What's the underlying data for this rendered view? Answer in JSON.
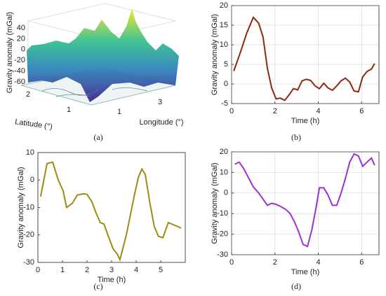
{
  "chart_data": [
    {
      "type": "surface",
      "label": "(a)",
      "zlabel": "Gravity anomaly (mGal)",
      "xlabel": "Latitude (°)",
      "ylabel": "Longitude (°)",
      "zlim": [
        -60,
        40
      ],
      "zticks": [
        40,
        20,
        0,
        -20,
        -40,
        -60
      ],
      "xticks": [
        2,
        1
      ],
      "yticks": [
        1,
        3
      ]
    },
    {
      "type": "line",
      "label": "(b)",
      "ylabel": "Gravity anomaly (mGal)",
      "xlabel": "Time (h)",
      "grid": true,
      "xlim": [
        0,
        6.8
      ],
      "xticks": [
        0,
        2,
        4,
        6
      ],
      "ylim": [
        -5,
        20
      ],
      "yticks": [
        -5,
        0,
        5,
        10,
        15,
        20
      ],
      "series": [
        {
          "color": "#8b2a10",
          "x": [
            0.1,
            0.4,
            0.7,
            1.0,
            1.25,
            1.45,
            1.65,
            1.85,
            2.05,
            2.25,
            2.45,
            2.65,
            2.85,
            3.05,
            3.25,
            3.45,
            3.65,
            3.85,
            4.05,
            4.25,
            4.45,
            4.65,
            4.85,
            5.05,
            5.25,
            5.45,
            5.65,
            5.85,
            6.05,
            6.25,
            6.45,
            6.6
          ],
          "values": [
            3.3,
            8,
            13,
            17,
            15.5,
            12,
            4,
            -1,
            -3.8,
            -3.6,
            -4.2,
            -2.8,
            -1.2,
            -1.5,
            0.8,
            1.2,
            0.9,
            -0.5,
            -1.2,
            0.2,
            -1,
            -1.6,
            -0.5,
            0.8,
            1.5,
            0.5,
            -1.8,
            -2,
            1.8,
            3.2,
            3.8,
            5.2
          ]
        }
      ]
    },
    {
      "type": "line",
      "label": "(c)",
      "ylabel": "Gravity anomaly (mGal)",
      "xlabel": "Time (h)",
      "grid": false,
      "xlim": [
        0,
        6
      ],
      "xticks": [
        0,
        1,
        2,
        3,
        4,
        5
      ],
      "ylim": [
        -30,
        10
      ],
      "yticks": [
        -30,
        -20,
        -10,
        0,
        10
      ],
      "series": [
        {
          "color": "#a08a10",
          "x": [
            0.11,
            0.37,
            0.6,
            0.83,
            1.03,
            1.17,
            1.4,
            1.6,
            1.86,
            2.0,
            2.2,
            2.37,
            2.54,
            2.69,
            2.89,
            3.06,
            3.23,
            3.34,
            3.6,
            3.94,
            4.09,
            4.23,
            4.37,
            4.57,
            4.74,
            4.91,
            5.09,
            5.31,
            5.83
          ],
          "values": [
            -6,
            6,
            6.5,
            0,
            -4,
            -10,
            -8.5,
            -5.5,
            -5,
            -5.2,
            -8,
            -12,
            -15.5,
            -16,
            -21,
            -25,
            -27,
            -29,
            -20,
            -5,
            1,
            4,
            2,
            -9,
            -17,
            -20.5,
            -21,
            -15.5,
            -17.5
          ]
        }
      ]
    },
    {
      "type": "line",
      "label": "(d)",
      "ylabel": "Gravity anomaly (mGal)",
      "xlabel": "Time (h)",
      "grid": true,
      "xlim": [
        0,
        6.8
      ],
      "xticks": [
        0,
        2,
        4,
        6
      ],
      "ylim": [
        -30,
        20
      ],
      "yticks": [
        -30,
        -20,
        -10,
        0,
        10,
        20
      ],
      "series": [
        {
          "color": "#9b30d9",
          "x": [
            0.15,
            0.35,
            0.55,
            0.75,
            1.0,
            1.25,
            1.45,
            1.65,
            1.85,
            2.05,
            2.25,
            2.5,
            2.7,
            2.9,
            3.1,
            3.3,
            3.5,
            3.7,
            3.9,
            4.05,
            4.25,
            4.45,
            4.65,
            4.85,
            5.05,
            5.25,
            5.45,
            5.65,
            5.85,
            6.05,
            6.25,
            6.45,
            6.6
          ],
          "values": [
            14,
            15,
            12,
            8,
            3,
            0,
            -3,
            -6,
            -5,
            -5.5,
            -6.5,
            -8,
            -10,
            -14,
            -19,
            -25,
            -26,
            -18,
            -7,
            2.5,
            2.5,
            -1,
            -6,
            -6,
            0,
            7,
            15,
            19,
            18,
            13,
            15,
            17,
            13.5
          ]
        }
      ]
    }
  ]
}
